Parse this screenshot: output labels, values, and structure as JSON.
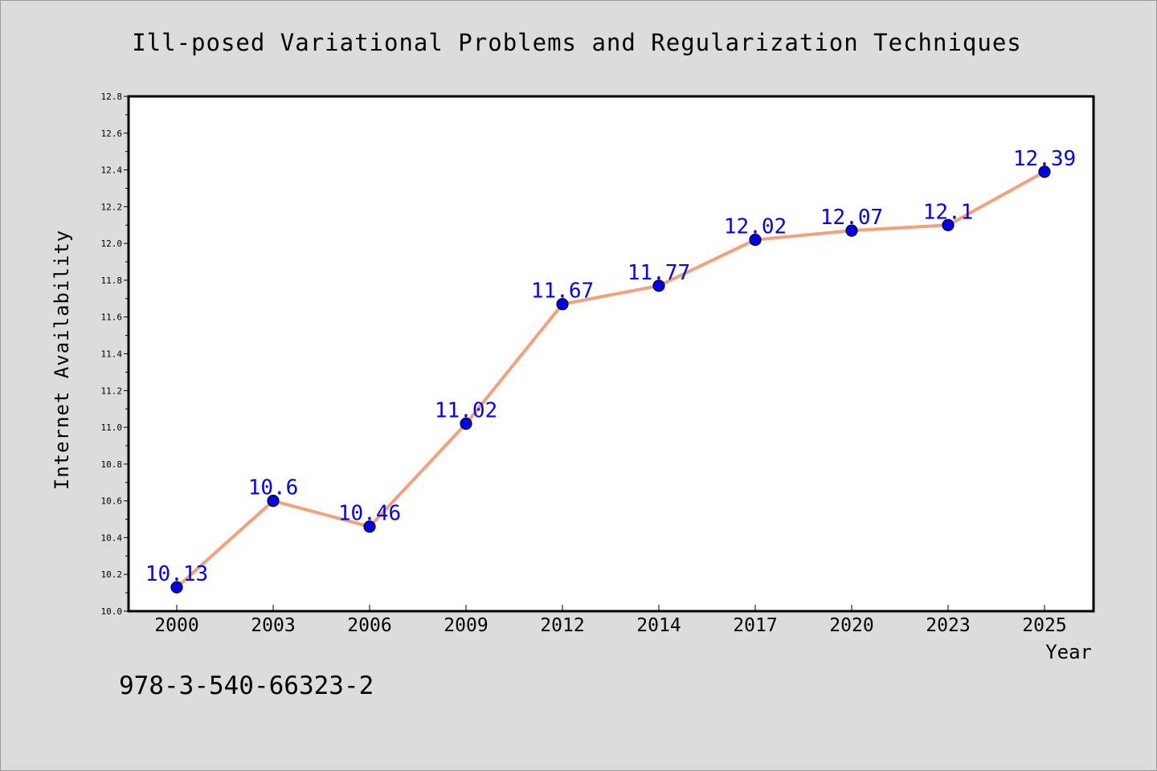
{
  "chart_data": {
    "type": "line",
    "title": "Ill-posed Variational Problems and Regularization Techniques",
    "xlabel": "Year",
    "ylabel": "Internet Availability",
    "categories": [
      "2000",
      "2003",
      "2006",
      "2009",
      "2012",
      "2014",
      "2017",
      "2020",
      "2023",
      "2025"
    ],
    "series": [
      {
        "values": [
          10.13,
          10.6,
          10.46,
          11.02,
          11.67,
          11.77,
          12.02,
          12.07,
          12.1,
          12.39
        ],
        "data_labels": [
          "10.13",
          "10.6",
          "10.46",
          "11.02",
          "11.67",
          "11.77",
          "12.02",
          "12.07",
          "12.1",
          "12.39"
        ],
        "line_color": "#f4a07a",
        "marker_color": "#0000ee"
      }
    ],
    "ylim": [
      10.0,
      12.8
    ],
    "yticks": [
      "10.0",
      "10.2",
      "10.4",
      "10.6",
      "10.8",
      "11.0",
      "11.2",
      "11.4",
      "11.6",
      "11.8",
      "12.0",
      "12.2",
      "12.4",
      "12.6",
      "12.8"
    ],
    "grid": false,
    "data_label_color": "#0000ff"
  },
  "footer": {
    "isbn": "978-3-540-66323-2"
  }
}
